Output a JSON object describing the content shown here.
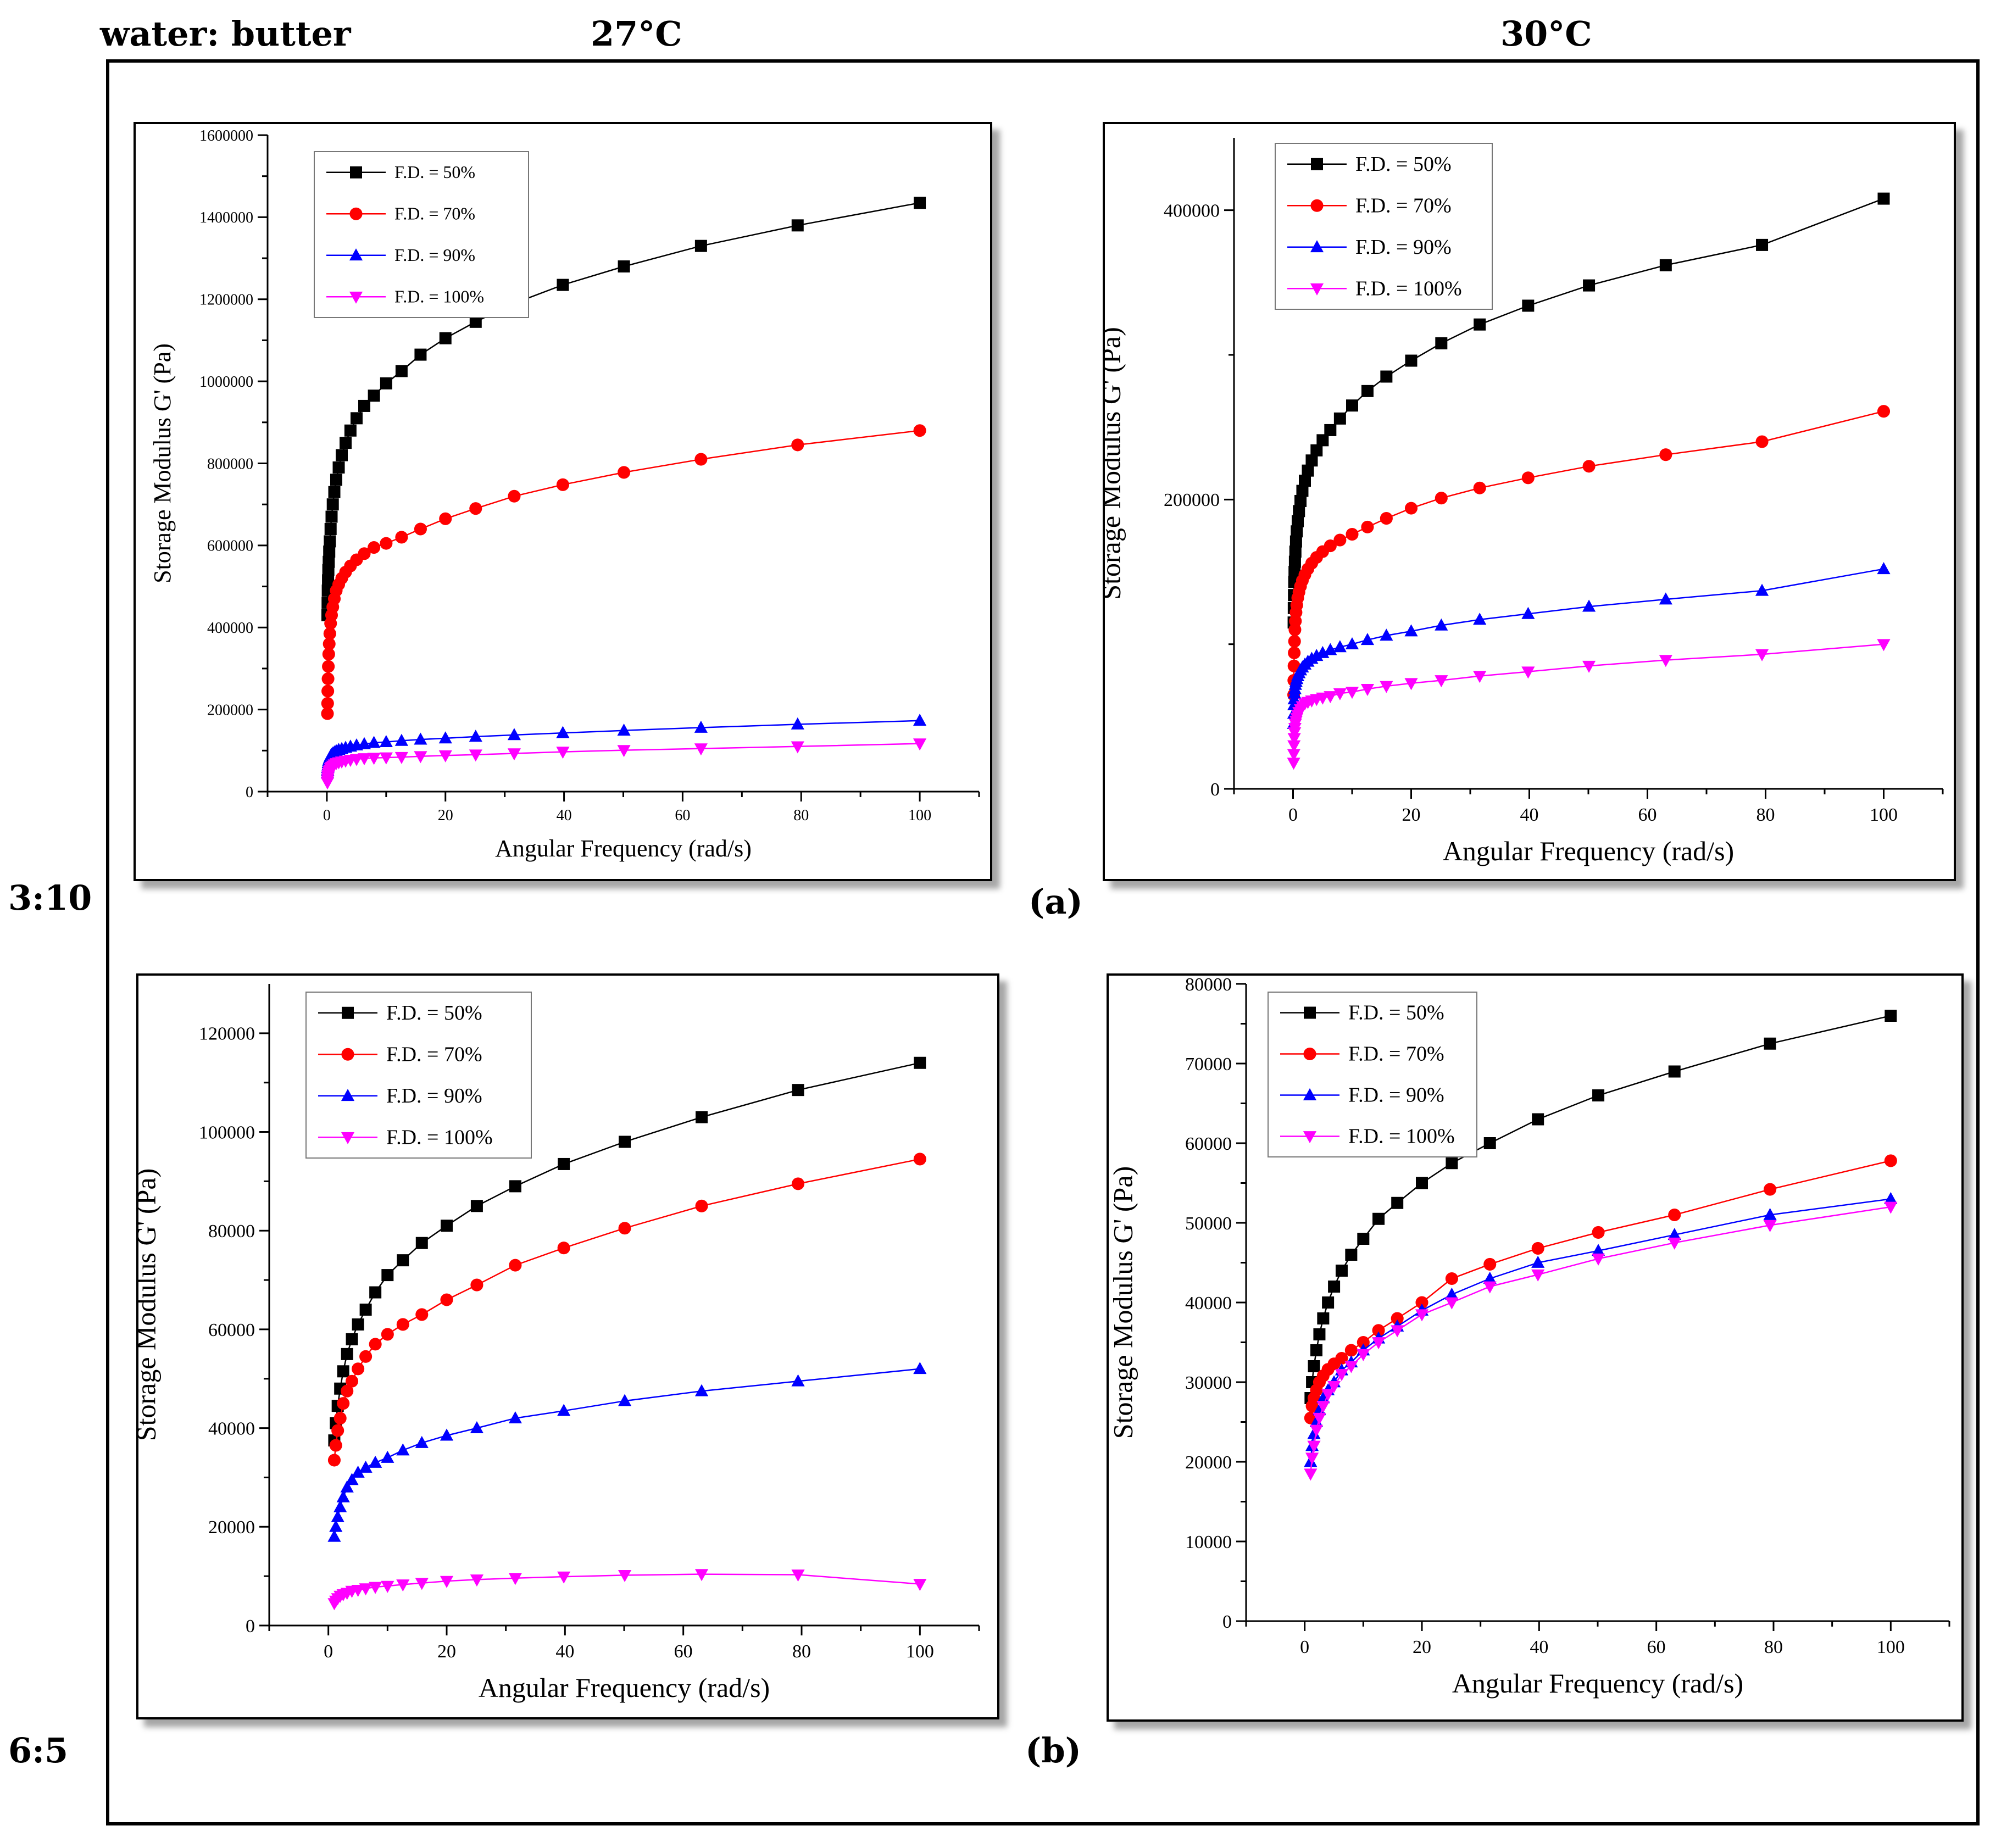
{
  "header": {
    "ratio_label": "water: butter",
    "temp_left": "27°C",
    "temp_right": "30°C",
    "row_a_ratio": "3:10",
    "row_b_ratio": "6:5",
    "tag_a": "(a)",
    "tag_b": "(b)"
  },
  "colors": {
    "F.D. = 50%": "#000000",
    "F.D. = 70%": "#ff0000",
    "F.D. = 90%": "#0000ff",
    "F.D. = 100%": "#ff00ff"
  },
  "chart_data": [
    {
      "id": "a27",
      "type": "line",
      "title": "3:10 at 27°C",
      "xlabel": "Angular Frequency (rad/s)",
      "ylabel": "Storage Modulus G' (Pa)",
      "xlim": [
        -10,
        110
      ],
      "ylim": [
        0,
        1600000
      ],
      "xticks": [
        0,
        20,
        40,
        60,
        80,
        100
      ],
      "yticks": [
        0,
        200000,
        400000,
        600000,
        800000,
        1000000,
        1200000,
        1400000,
        1600000
      ],
      "ytick_labels": [
        "0",
        "200000",
        "400000",
        "600000",
        "800000",
        "1000000",
        "1200000",
        "1400000",
        "1600000"
      ],
      "legend_position": "top-left",
      "x": [
        0.1,
        0.126,
        0.158,
        0.2,
        0.251,
        0.316,
        0.398,
        0.501,
        0.631,
        0.794,
        1,
        1.26,
        1.58,
        2,
        2.51,
        3.16,
        3.98,
        5.01,
        6.31,
        7.94,
        10,
        12.6,
        15.8,
        20,
        25.1,
        31.6,
        39.8,
        50.1,
        63.1,
        79.4,
        100
      ],
      "series": [
        {
          "name": "F.D. = 50%",
          "marker": "square",
          "values": [
            430000,
            460000,
            490000,
            515000,
            540000,
            560000,
            585000,
            610000,
            640000,
            670000,
            700000,
            730000,
            760000,
            790000,
            820000,
            850000,
            880000,
            910000,
            940000,
            965000,
            995000,
            1025000,
            1065000,
            1105000,
            1145000,
            1190000,
            1235000,
            1280000,
            1330000,
            1380000,
            1435000
          ]
        },
        {
          "name": "F.D. = 70%",
          "marker": "circle",
          "values": [
            190000,
            215000,
            245000,
            275000,
            305000,
            335000,
            360000,
            385000,
            410000,
            430000,
            450000,
            470000,
            490000,
            505000,
            520000,
            535000,
            550000,
            565000,
            580000,
            595000,
            605000,
            620000,
            640000,
            665000,
            690000,
            720000,
            748000,
            778000,
            810000,
            845000,
            880000
          ]
        },
        {
          "name": "F.D. = 90%",
          "marker": "triangle-up",
          "values": [
            45000,
            52000,
            58000,
            64000,
            70000,
            75000,
            79000,
            83000,
            87000,
            90000,
            93000,
            96000,
            99000,
            102000,
            104000,
            107000,
            110000,
            113000,
            116000,
            119000,
            121000,
            124000,
            127000,
            130000,
            134000,
            138000,
            143000,
            149000,
            156000,
            164000,
            173000
          ]
        },
        {
          "name": "F.D. = 100%",
          "marker": "triangle-down",
          "values": [
            22000,
            27000,
            32000,
            37000,
            41000,
            45000,
            49000,
            53000,
            57000,
            60000,
            63000,
            66000,
            69000,
            71000,
            73000,
            75000,
            77000,
            79000,
            81000,
            82000,
            83000,
            84000,
            86000,
            88000,
            90000,
            93000,
            97000,
            101000,
            105000,
            110000,
            117000
          ]
        }
      ]
    },
    {
      "id": "a30",
      "type": "line",
      "title": "3:10 at 30°C",
      "xlabel": "Angular Frequency (rad/s)",
      "ylabel": "Storage Modulus G' (Pa)",
      "xlim": [
        -10,
        110
      ],
      "ylim": [
        0,
        450000
      ],
      "xticks": [
        0,
        20,
        40,
        60,
        80,
        100
      ],
      "yticks": [
        0,
        200000,
        400000
      ],
      "ytick_labels": [
        "0",
        "200000",
        "400000"
      ],
      "legend_position": "top-left",
      "x": [
        0.1,
        0.126,
        0.158,
        0.2,
        0.251,
        0.316,
        0.398,
        0.501,
        0.631,
        0.794,
        1,
        1.26,
        1.58,
        2,
        2.51,
        3.16,
        3.98,
        5.01,
        6.31,
        7.94,
        10,
        12.6,
        15.8,
        20,
        25.1,
        31.6,
        39.8,
        50.1,
        63.1,
        79.4,
        100
      ],
      "series": [
        {
          "name": "F.D. = 50%",
          "marker": "square",
          "values": [
            115000,
            125000,
            134000,
            143000,
            150000,
            157000,
            164000,
            171000,
            178000,
            185000,
            192000,
            199000,
            206000,
            213000,
            220000,
            227000,
            234000,
            241000,
            248000,
            256000,
            265000,
            275000,
            285000,
            296000,
            308000,
            321000,
            334000,
            348000,
            362000,
            376000,
            408000
          ]
        },
        {
          "name": "F.D. = 70%",
          "marker": "circle",
          "values": [
            65000,
            75000,
            85000,
            94000,
            102000,
            110000,
            116000,
            122000,
            127000,
            132000,
            136000,
            140000,
            144000,
            148000,
            152000,
            156000,
            160000,
            164000,
            168000,
            172000,
            176000,
            181000,
            187000,
            194000,
            201000,
            208000,
            215000,
            223000,
            231000,
            240000,
            261000
          ]
        },
        {
          "name": "F.D. = 90%",
          "marker": "triangle-up",
          "values": [
            45000,
            52000,
            58000,
            62000,
            66000,
            69000,
            72000,
            74000,
            76000,
            78000,
            80000,
            82000,
            84000,
            86000,
            88000,
            90000,
            92000,
            94000,
            96000,
            98000,
            100000,
            103000,
            106000,
            109000,
            113000,
            117000,
            121000,
            126000,
            131000,
            137000,
            152000
          ]
        },
        {
          "name": "F.D. = 100%",
          "marker": "triangle-down",
          "values": [
            18000,
            24000,
            30000,
            35000,
            39000,
            42000,
            45000,
            47000,
            49000,
            51000,
            53000,
            55000,
            57000,
            59000,
            60000,
            61000,
            62000,
            63000,
            64000,
            66000,
            67000,
            69000,
            71000,
            73000,
            75000,
            78000,
            81000,
            85000,
            89000,
            93000,
            100000
          ]
        }
      ]
    },
    {
      "id": "b27",
      "type": "line",
      "title": "6:5 at 27°C",
      "xlabel": "Angular Frequency (rad/s)",
      "ylabel": "Storage Modulus G' (Pa)",
      "xlim": [
        -10,
        110
      ],
      "ylim": [
        0,
        130000
      ],
      "xticks": [
        0,
        20,
        40,
        60,
        80,
        100
      ],
      "yticks": [
        0,
        20000,
        40000,
        60000,
        80000,
        100000,
        120000
      ],
      "ytick_labels": [
        "0",
        "20000",
        "40000",
        "60000",
        "80000",
        "100000",
        "120000"
      ],
      "legend_position": "top-left",
      "x": [
        1,
        1.26,
        1.58,
        2,
        2.51,
        3.16,
        3.98,
        5.01,
        6.31,
        7.94,
        10,
        12.6,
        15.8,
        20,
        25.1,
        31.6,
        39.8,
        50.1,
        63.1,
        79.4,
        100
      ],
      "series": [
        {
          "name": "F.D. = 50%",
          "marker": "square",
          "values": [
            37500,
            41000,
            44500,
            48000,
            51500,
            55000,
            58000,
            61000,
            64000,
            67500,
            71000,
            74000,
            77500,
            81000,
            85000,
            89000,
            93500,
            98000,
            103000,
            108500,
            114000
          ]
        },
        {
          "name": "F.D. = 70%",
          "marker": "circle",
          "values": [
            33500,
            36500,
            39500,
            42000,
            45000,
            47500,
            49500,
            52000,
            54500,
            57000,
            59000,
            61000,
            63000,
            66000,
            69000,
            73000,
            76500,
            80500,
            85000,
            89500,
            94500
          ]
        },
        {
          "name": "F.D. = 90%",
          "marker": "triangle-up",
          "values": [
            18000,
            20000,
            22000,
            24000,
            26000,
            28000,
            29500,
            31000,
            32000,
            33000,
            34000,
            35500,
            37000,
            38500,
            40000,
            42000,
            43500,
            45500,
            47500,
            49500,
            52000
          ]
        },
        {
          "name": "F.D. = 100%",
          "marker": "triangle-down",
          "values": [
            4500,
            5000,
            5500,
            6000,
            6300,
            6600,
            7000,
            7200,
            7500,
            7800,
            8000,
            8300,
            8600,
            9000,
            9300,
            9600,
            9900,
            10200,
            10400,
            10300,
            8400
          ]
        }
      ]
    },
    {
      "id": "b30",
      "type": "line",
      "title": "6:5 at 30°C",
      "xlabel": "Angular Frequency (rad/s)",
      "ylabel": "Storage Modulus G' (Pa)",
      "xlim": [
        -10,
        110
      ],
      "ylim": [
        0,
        80000
      ],
      "xticks": [
        0,
        20,
        40,
        60,
        80,
        100
      ],
      "yticks": [
        0,
        10000,
        20000,
        30000,
        40000,
        50000,
        60000,
        70000,
        80000
      ],
      "ytick_labels": [
        "0",
        "10000",
        "20000",
        "30000",
        "40000",
        "50000",
        "60000",
        "70000",
        "80000"
      ],
      "legend_position": "top-left",
      "x": [
        1,
        1.26,
        1.58,
        2,
        2.51,
        3.16,
        3.98,
        5.01,
        6.31,
        7.94,
        10,
        12.6,
        15.8,
        20,
        25.1,
        31.6,
        39.8,
        50.1,
        63.1,
        79.4,
        100
      ],
      "series": [
        {
          "name": "F.D. = 50%",
          "marker": "square",
          "values": [
            28000,
            30000,
            32000,
            34000,
            36000,
            38000,
            40000,
            42000,
            44000,
            46000,
            48000,
            50500,
            52500,
            55000,
            57500,
            60000,
            63000,
            66000,
            69000,
            72500,
            76000
          ]
        },
        {
          "name": "F.D. = 70%",
          "marker": "circle",
          "values": [
            25500,
            27000,
            28000,
            29000,
            30000,
            30800,
            31600,
            32300,
            33000,
            34000,
            35000,
            36500,
            38000,
            40000,
            43000,
            44800,
            46800,
            48800,
            51000,
            54200,
            57800
          ]
        },
        {
          "name": "F.D. = 90%",
          "marker": "triangle-up",
          "values": [
            20000,
            22000,
            23500,
            25000,
            26500,
            28000,
            29000,
            30000,
            31500,
            32500,
            34000,
            35500,
            37000,
            39000,
            41000,
            43000,
            45000,
            46500,
            48500,
            51000,
            53000
          ]
        },
        {
          "name": "F.D. = 100%",
          "marker": "triangle-down",
          "values": [
            18500,
            20500,
            22000,
            24000,
            25500,
            27000,
            28500,
            29500,
            31000,
            32000,
            33500,
            35000,
            36500,
            38500,
            40000,
            42000,
            43500,
            45500,
            47500,
            49700,
            52000
          ]
        }
      ]
    }
  ]
}
